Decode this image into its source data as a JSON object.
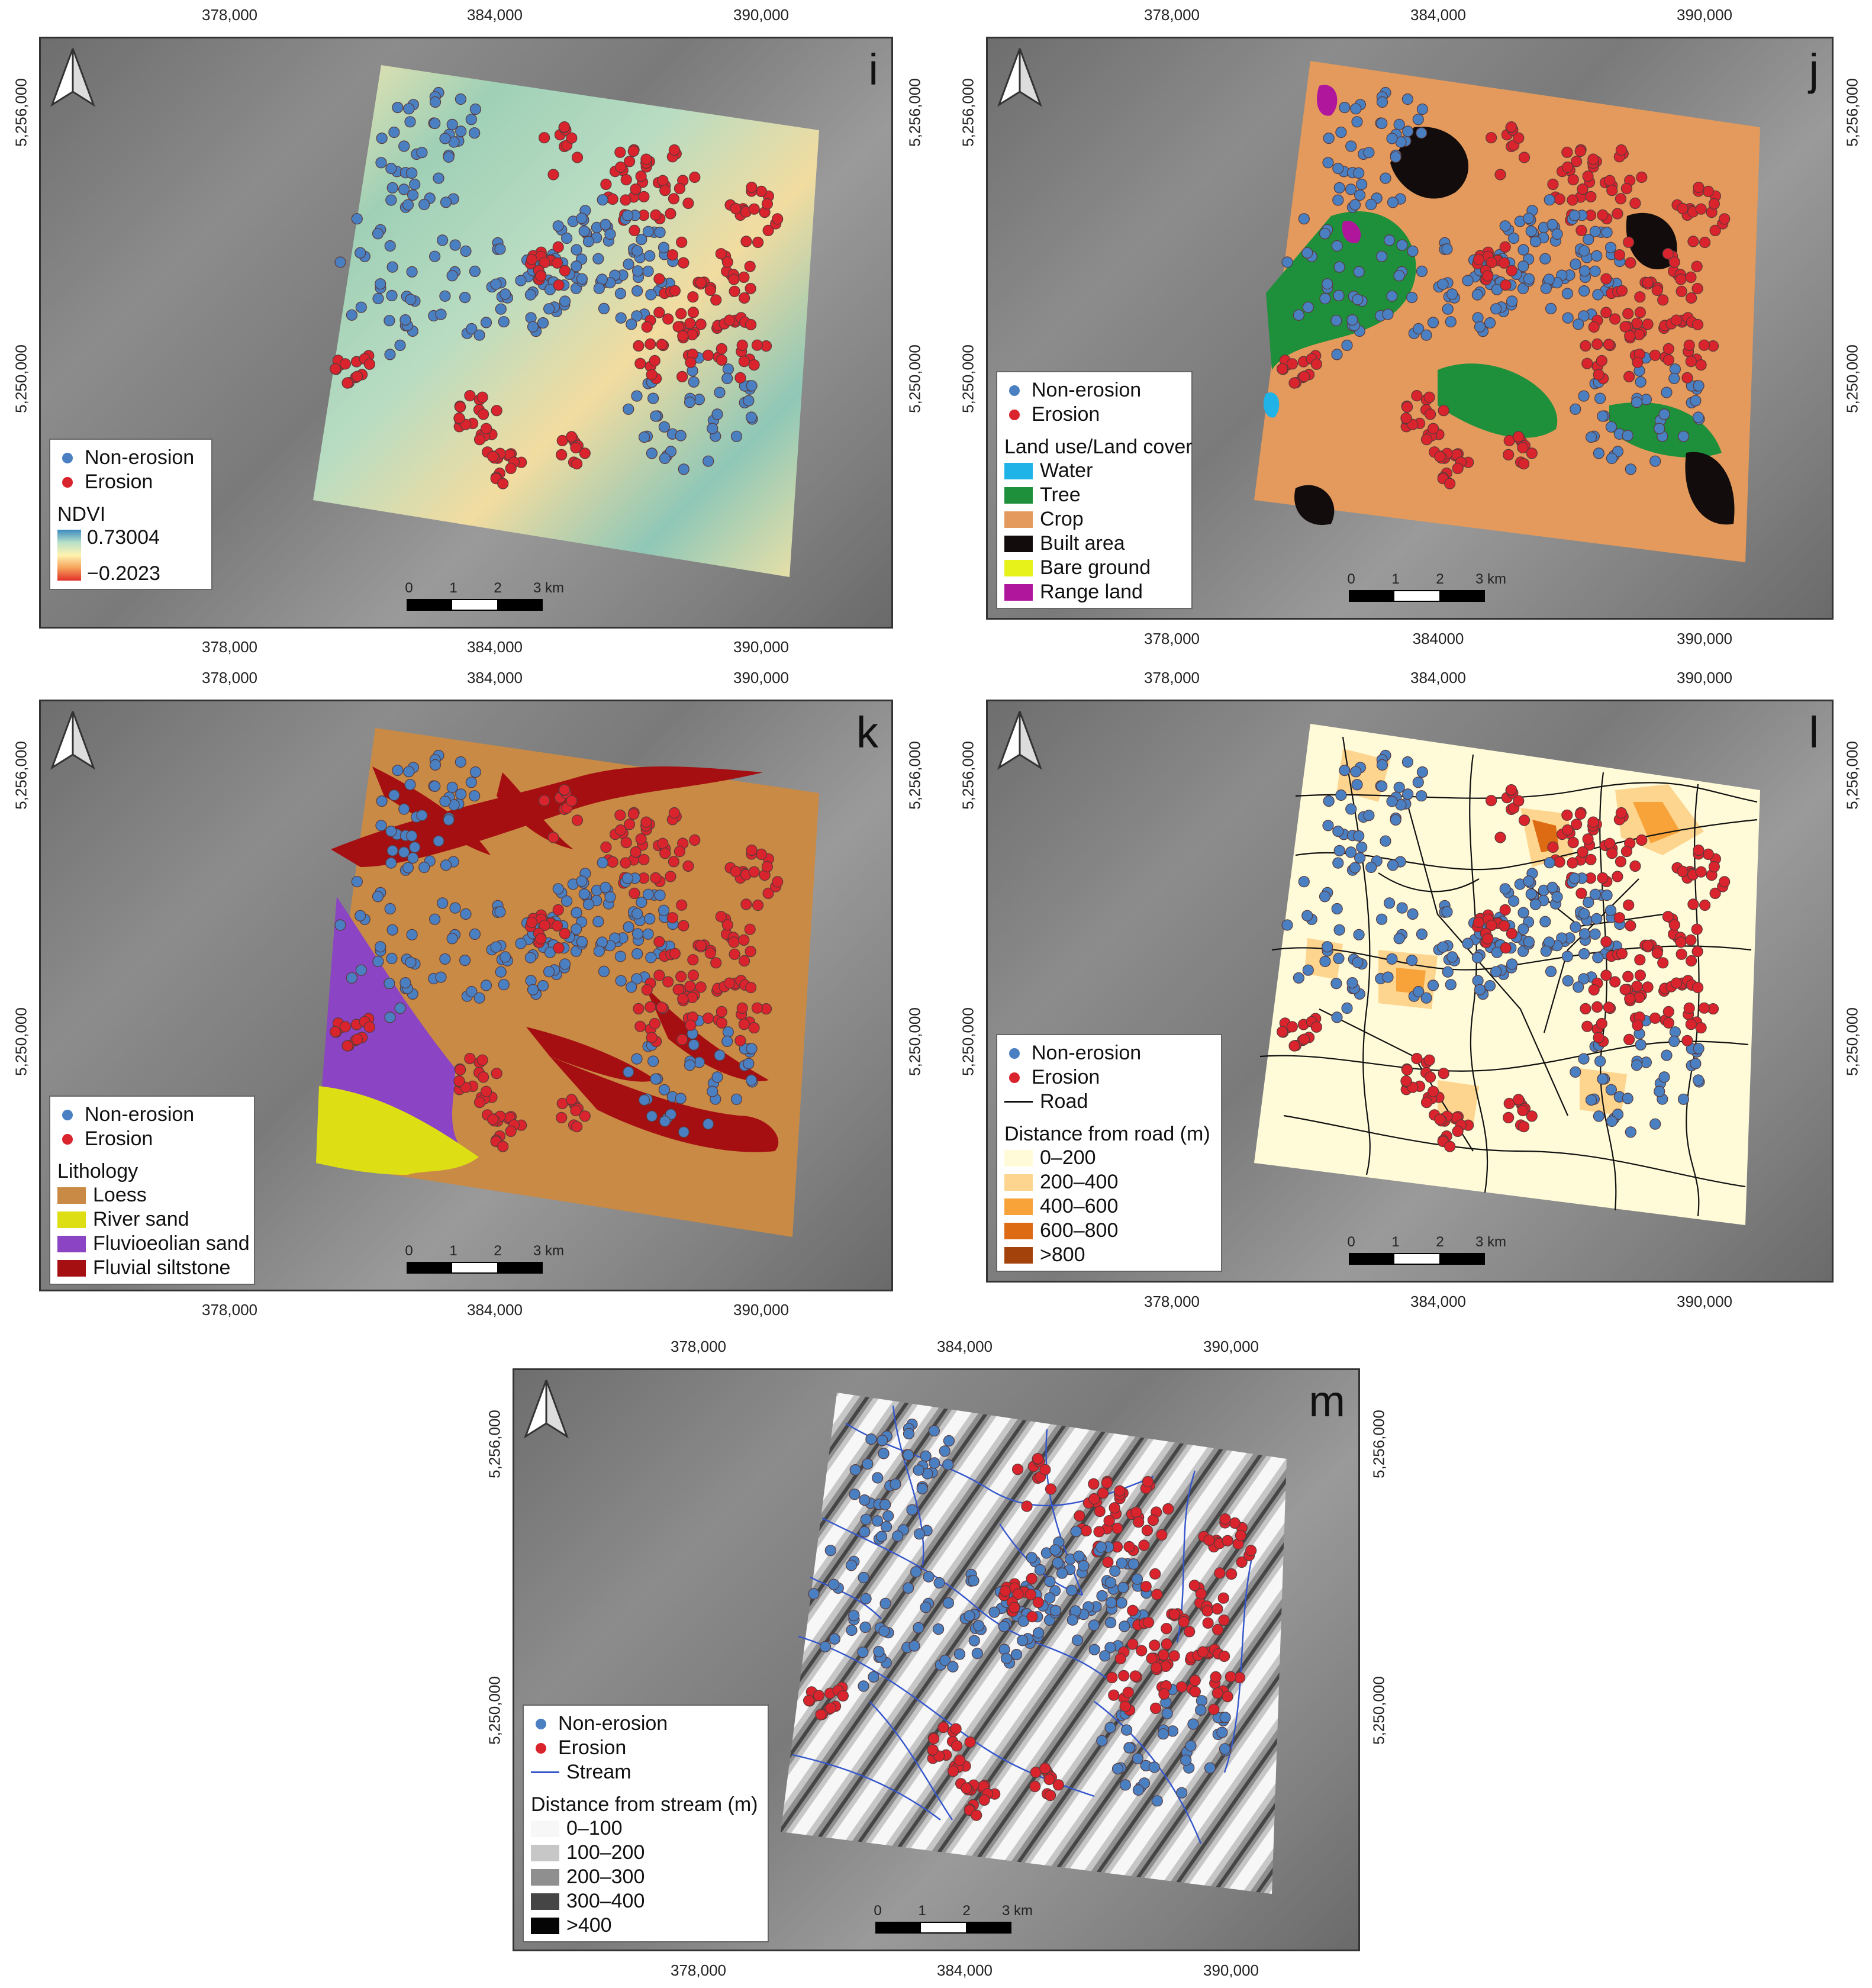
{
  "colors": {
    "non_erosion": "#4a7fc1",
    "erosion": "#d9232d"
  },
  "panels": [
    {
      "id": "i",
      "letter": "i",
      "x_ticks": [
        "378,000",
        "384,000",
        "390,000"
      ],
      "y_ticks": [
        "5,256,000",
        "5,250,000"
      ],
      "legend": {
        "points": [
          "Non-erosion",
          "Erosion"
        ],
        "title": "NDVI",
        "max": "0.73004",
        "min": "−0.2023"
      },
      "scale": [
        "0",
        "1",
        "2",
        "3 km"
      ]
    },
    {
      "id": "j",
      "letter": "j",
      "x_ticks": [
        "378,000",
        "384,000",
        "390,000"
      ],
      "x_ticks_bottom": [
        "378,000",
        "384000",
        "390,000"
      ],
      "y_ticks": [
        "5,256,000",
        "5,250,000"
      ],
      "legend": {
        "points": [
          "Non-erosion",
          "Erosion"
        ],
        "title": "Land use/Land cover",
        "classes": [
          {
            "label": "Water",
            "color": "#1fb3e8"
          },
          {
            "label": "Tree",
            "color": "#1e8f3a"
          },
          {
            "label": "Crop",
            "color": "#e39a5c"
          },
          {
            "label": "Built area",
            "color": "#120c0c"
          },
          {
            "label": "Bare ground",
            "color": "#e6f21a"
          },
          {
            "label": "Range land",
            "color": "#b0169c"
          }
        ]
      },
      "scale": [
        "0",
        "1",
        "2",
        "3 km"
      ]
    },
    {
      "id": "k",
      "letter": "k",
      "x_ticks": [
        "378,000",
        "384,000",
        "390,000"
      ],
      "y_ticks": [
        "5,256,000",
        "5,250,000"
      ],
      "legend": {
        "points": [
          "Non-erosion",
          "Erosion"
        ],
        "title": "Lithology",
        "classes": [
          {
            "label": "Loess",
            "color": "#c98a45"
          },
          {
            "label": "River sand",
            "color": "#dede14"
          },
          {
            "label": "Fluvioeolian sand",
            "color": "#8a44c4"
          },
          {
            "label": "Fluvial siltstone",
            "color": "#a50f12"
          }
        ]
      },
      "scale": [
        "0",
        "1",
        "2",
        "3 km"
      ]
    },
    {
      "id": "l",
      "letter": "l",
      "x_ticks": [
        "378,000",
        "384,000",
        "390,000"
      ],
      "y_ticks": [
        "5,256,000",
        "5,250,000"
      ],
      "legend": {
        "points": [
          "Non-erosion",
          "Erosion"
        ],
        "line": "Road",
        "line_color": "#111111",
        "title": "Distance from road (m)",
        "classes": [
          {
            "label": "0–200",
            "color": "#fffbd9"
          },
          {
            "label": "200–400",
            "color": "#fdd58f"
          },
          {
            "label": "400–600",
            "color": "#f7a33a"
          },
          {
            "label": "600–800",
            "color": "#dd6b13"
          },
          {
            "label": ">800",
            "color": "#a3420a"
          }
        ]
      },
      "scale": [
        "0",
        "1",
        "2",
        "3 km"
      ]
    },
    {
      "id": "m",
      "letter": "m",
      "x_ticks": [
        "378,000",
        "384,000",
        "390,000"
      ],
      "y_ticks": [
        "5,256,000",
        "5,250,000"
      ],
      "legend": {
        "points": [
          "Non-erosion",
          "Erosion"
        ],
        "line": "Stream",
        "line_color": "#3355cc",
        "title": "Distance from stream (m)",
        "classes": [
          {
            "label": "0–100",
            "color": "#f7f7f7"
          },
          {
            "label": "100–200",
            "color": "#c7c7c7"
          },
          {
            "label": "200–300",
            "color": "#8f8f8f"
          },
          {
            "label": "300–400",
            "color": "#454545"
          },
          {
            "label": ">400",
            "color": "#050505"
          }
        ]
      },
      "scale": [
        "0",
        "1",
        "2",
        "3 km"
      ]
    }
  ]
}
